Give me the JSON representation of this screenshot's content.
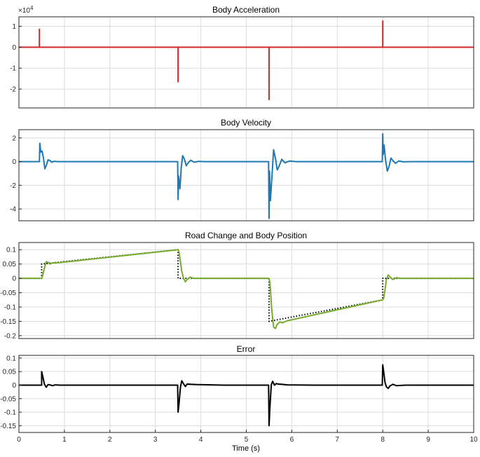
{
  "chart_data": [
    {
      "type": "line",
      "title": "Body Acceleration",
      "multiplier_label": "×10",
      "multiplier_exponent": "4",
      "xlim": [
        0,
        10
      ],
      "ylim": [
        -2.9,
        1.45
      ],
      "yticks": [
        -2,
        -1,
        0,
        1
      ],
      "ytick_labels": [
        "-2",
        "-1",
        "0",
        "1"
      ],
      "xtick_labels_visible": false,
      "grid": true,
      "series": [
        {
          "color": "#d62728",
          "style": "solid",
          "x": [
            0,
            0.45,
            0.45,
            0.45,
            0.45,
            0.47,
            3.5,
            3.5,
            3.5,
            3.5,
            3.52,
            5.5,
            5.5,
            5.5,
            5.5,
            5.52,
            8.0,
            8.0,
            8.0,
            8.0,
            8.02,
            10
          ],
          "y": [
            0,
            0,
            0.85,
            0,
            0,
            0,
            0,
            -1.65,
            0,
            0,
            0,
            0,
            -2.5,
            0,
            0,
            0,
            0,
            1.25,
            0,
            0,
            0,
            0
          ]
        }
      ]
    },
    {
      "type": "line",
      "title": "Body Velocity",
      "xlim": [
        0,
        10
      ],
      "ylim": [
        -5.0,
        2.7
      ],
      "yticks": [
        -4,
        -2,
        0,
        2
      ],
      "ytick_labels": [
        "-4",
        "-2",
        "0",
        "2"
      ],
      "xtick_labels_visible": false,
      "grid": true,
      "series": [
        {
          "color": "#1f77b4",
          "style": "solid",
          "x": [
            0,
            0.45,
            0.46,
            0.48,
            0.51,
            0.54,
            0.57,
            0.6,
            0.64,
            0.68,
            0.72,
            0.78,
            0.85,
            1.0,
            3.49,
            3.5,
            3.51,
            3.54,
            3.57,
            3.6,
            3.64,
            3.68,
            3.72,
            3.78,
            3.85,
            3.95,
            4.1,
            5.49,
            5.5,
            5.51,
            5.53,
            5.56,
            5.6,
            5.64,
            5.68,
            5.72,
            5.78,
            5.85,
            5.95,
            6.1,
            7.99,
            8.0,
            8.01,
            8.03,
            8.06,
            8.1,
            8.14,
            8.18,
            8.22,
            8.28,
            8.35,
            8.45,
            8.6,
            10
          ],
          "y": [
            0,
            0,
            1.55,
            0.8,
            0.9,
            0.3,
            -0.6,
            -0.35,
            0.15,
            0.1,
            -0.05,
            0.03,
            0,
            0,
            0,
            -3.2,
            -1.2,
            -2.3,
            -0.5,
            0.5,
            0.2,
            -0.35,
            -0.1,
            0.12,
            -0.05,
            0.02,
            0,
            0,
            -4.8,
            -0.8,
            -3.3,
            -1.5,
            1.0,
            0.3,
            -0.7,
            -0.4,
            0.2,
            -0.1,
            0.05,
            0,
            0,
            2.35,
            0.6,
            1.4,
            0.2,
            -0.8,
            -0.4,
            0.3,
            0.1,
            -0.15,
            0.05,
            -0.02,
            0,
            0
          ]
        }
      ]
    },
    {
      "type": "line",
      "title": "Road Change and Body Position",
      "xlim": [
        0,
        10
      ],
      "ylim": [
        -0.21,
        0.125
      ],
      "yticks": [
        -0.2,
        -0.15,
        -0.1,
        -0.05,
        0,
        0.05,
        0.1
      ],
      "ytick_labels": [
        "-0.2",
        "-0.15",
        "-0.1",
        "-0.05",
        "0",
        "0.05",
        "0.1"
      ],
      "xtick_labels_visible": false,
      "grid": true,
      "series": [
        {
          "color": "#000000",
          "style": "dotted",
          "x": [
            0,
            0.5,
            0.5,
            3.5,
            3.5,
            5.5,
            5.5,
            8.0,
            8.0,
            10
          ],
          "y": [
            0,
            0,
            0.05,
            0.1,
            0,
            0,
            -0.15,
            -0.075,
            0,
            0
          ]
        },
        {
          "color": "#77ac30",
          "style": "solid",
          "x": [
            0,
            0.5,
            0.52,
            0.56,
            0.6,
            0.64,
            0.68,
            0.74,
            0.8,
            0.9,
            3.5,
            3.52,
            3.55,
            3.58,
            3.62,
            3.66,
            3.7,
            3.76,
            3.85,
            3.95,
            4.1,
            5.5,
            5.52,
            5.56,
            5.6,
            5.64,
            5.68,
            5.74,
            5.8,
            5.9,
            8.0,
            8.02,
            8.05,
            8.08,
            8.12,
            8.16,
            8.22,
            8.3,
            8.4,
            10
          ],
          "y": [
            0,
            0,
            0.008,
            0.035,
            0.058,
            0.056,
            0.05,
            0.054,
            0.054,
            0.055,
            0.1,
            0.092,
            0.06,
            0.025,
            0.0,
            -0.012,
            -0.004,
            0.004,
            0.0,
            0.0,
            0.0,
            0.0,
            -0.015,
            -0.11,
            -0.17,
            -0.175,
            -0.16,
            -0.152,
            -0.155,
            -0.148,
            -0.075,
            -0.07,
            -0.04,
            -0.005,
            0.012,
            0.005,
            -0.004,
            0.002,
            0.0,
            0.0
          ]
        }
      ]
    },
    {
      "type": "line",
      "title": "Error",
      "xlim": [
        0,
        10
      ],
      "ylim": [
        -0.175,
        0.11
      ],
      "yticks": [
        -0.15,
        -0.1,
        -0.05,
        0,
        0.05,
        0.1
      ],
      "ytick_labels": [
        "-0.15",
        "-0.1",
        "-0.05",
        "0",
        "0.05",
        "0.1"
      ],
      "xticks": [
        0,
        1,
        2,
        3,
        4,
        5,
        6,
        7,
        8,
        9,
        10
      ],
      "xtick_labels": [
        "0",
        "1",
        "2",
        "3",
        "4",
        "5",
        "6",
        "7",
        "8",
        "9",
        "10"
      ],
      "xlabel": "Time (s)",
      "grid": true,
      "series": [
        {
          "color": "#000000",
          "style": "solid",
          "x": [
            0,
            0.5,
            0.5,
            0.53,
            0.56,
            0.6,
            0.64,
            0.68,
            0.74,
            0.8,
            0.9,
            3.49,
            3.5,
            3.52,
            3.55,
            3.58,
            3.62,
            3.66,
            3.7,
            3.78,
            3.9,
            4.5,
            5.49,
            5.5,
            5.52,
            5.55,
            5.58,
            5.62,
            5.66,
            5.7,
            5.78,
            5.9,
            6.5,
            7.99,
            8.0,
            8.02,
            8.05,
            8.08,
            8.12,
            8.16,
            8.22,
            8.3,
            8.5,
            10
          ],
          "y": [
            0,
            0,
            0.05,
            0.028,
            0.004,
            -0.008,
            0.002,
            0.001,
            -0.002,
            0.001,
            0,
            0,
            -0.1,
            -0.07,
            -0.01,
            0.016,
            0.005,
            -0.005,
            0.004,
            0.003,
            0.002,
            0.0,
            0,
            -0.15,
            -0.08,
            0.002,
            0.014,
            0.0,
            0.006,
            0.004,
            0.003,
            0.001,
            0.0,
            0,
            0.075,
            0.05,
            0.01,
            -0.006,
            -0.012,
            -0.003,
            0.003,
            -0.002,
            0.0,
            0
          ]
        }
      ]
    }
  ]
}
